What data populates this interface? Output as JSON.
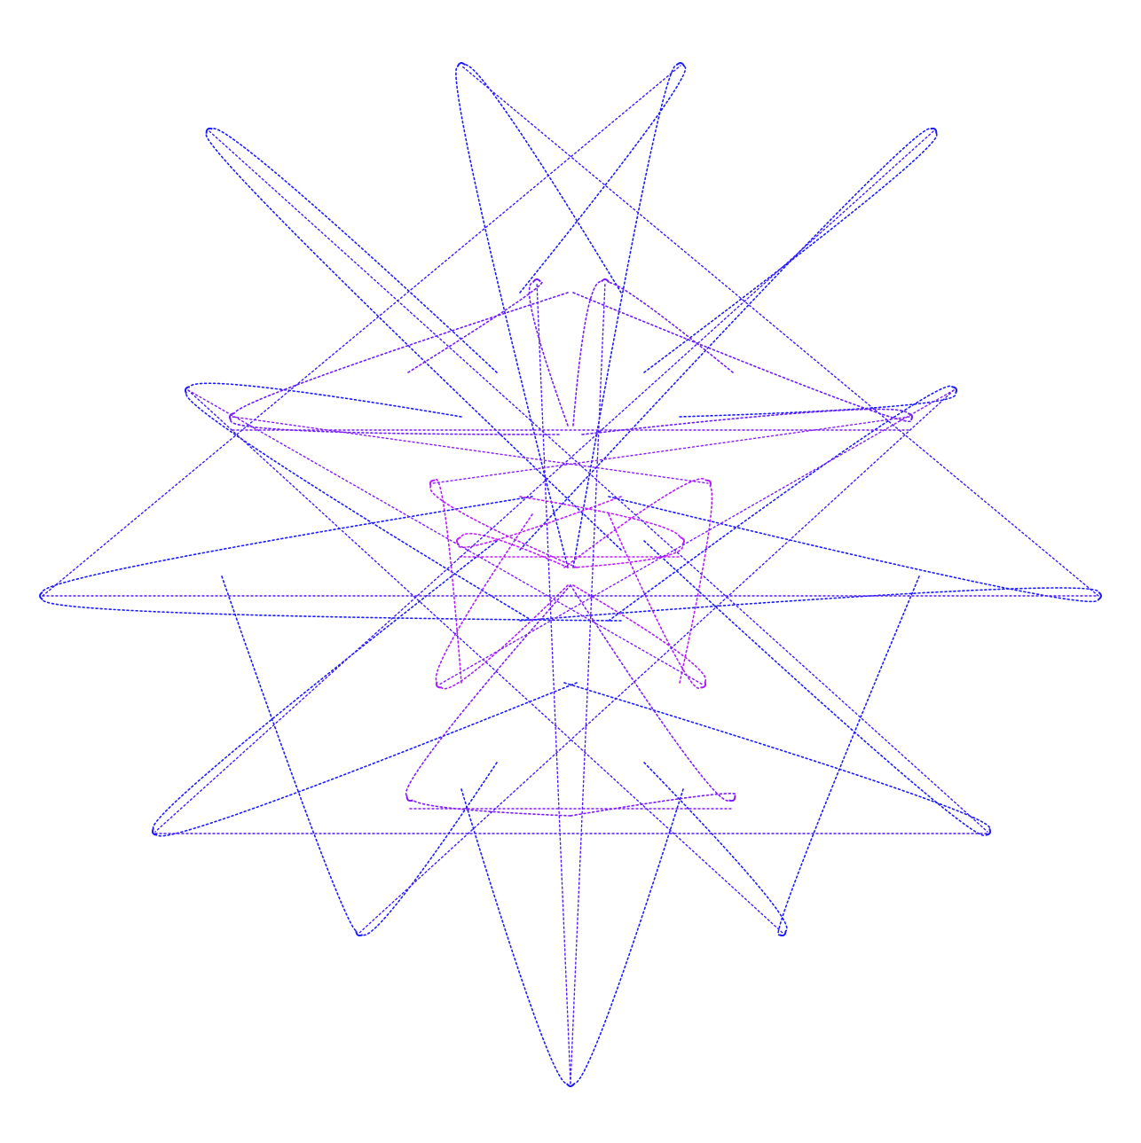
{
  "artwork": {
    "kind": "parametric-curve",
    "background_color": "#ffffff",
    "stroke_style": "dotted",
    "gradient_outer_color": "#1a1aff",
    "gradient_inner_color": "#d21aff",
    "symmetry": "mirror-left-right"
  }
}
